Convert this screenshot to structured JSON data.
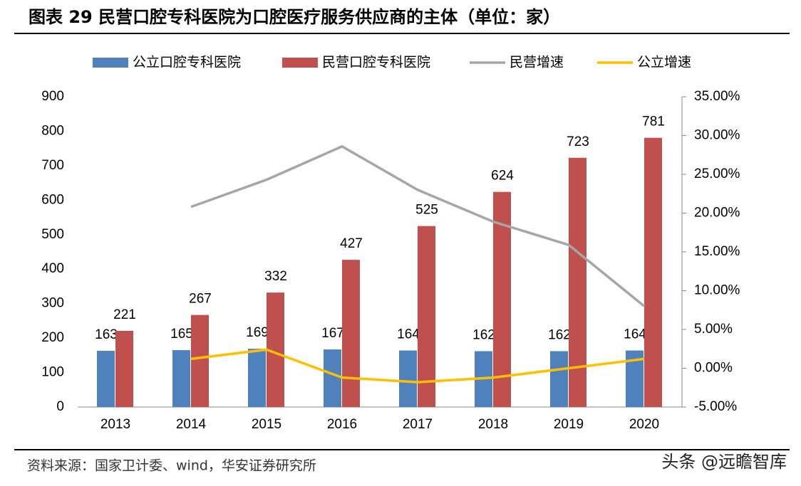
{
  "title": "图表 29 民营口腔专科医院为口腔医疗服务供应商的主体（单位：家）",
  "source": "资料来源：国家卫计委、wind，华安证券研究所",
  "watermark": "头条 @远瞻智库",
  "chart_data": {
    "type": "bar",
    "categories": [
      "2013",
      "2014",
      "2015",
      "2016",
      "2017",
      "2018",
      "2019",
      "2020"
    ],
    "series": [
      {
        "name": "公立口腔专科医院",
        "color": "#4f81bd",
        "type": "bar",
        "values": [
          163,
          165,
          169,
          167,
          164,
          162,
          162,
          164
        ]
      },
      {
        "name": "民营口腔专科医院",
        "color": "#c0504d",
        "type": "bar",
        "values": [
          221,
          267,
          332,
          427,
          525,
          624,
          723,
          781
        ]
      },
      {
        "name": "民营增速",
        "color": "#a6a6a6",
        "type": "line",
        "axis": "y2",
        "values": [
          null,
          20.8,
          24.3,
          28.6,
          23.0,
          18.9,
          15.9,
          8.0
        ]
      },
      {
        "name": "公立增速",
        "color": "#ffc000",
        "type": "line",
        "axis": "y2",
        "values": [
          null,
          1.2,
          2.4,
          -1.2,
          -1.8,
          -1.2,
          0,
          1.2
        ]
      }
    ],
    "ylim": [
      0,
      900
    ],
    "yticks": [
      0,
      100,
      200,
      300,
      400,
      500,
      600,
      700,
      800,
      900
    ],
    "y2lim": [
      -5,
      35
    ],
    "y2ticks": [
      {
        "value": -5,
        "label": "-5.00%"
      },
      {
        "value": 0,
        "label": "0.00%"
      },
      {
        "value": 5,
        "label": "5.00%"
      },
      {
        "value": 10,
        "label": "10.00%"
      },
      {
        "value": 15,
        "label": "15.00%"
      },
      {
        "value": 20,
        "label": "20.00%"
      },
      {
        "value": 25,
        "label": "25.00%"
      },
      {
        "value": 30,
        "label": "30.00%"
      },
      {
        "value": 35,
        "label": "35.00%"
      }
    ],
    "legend": "top"
  }
}
